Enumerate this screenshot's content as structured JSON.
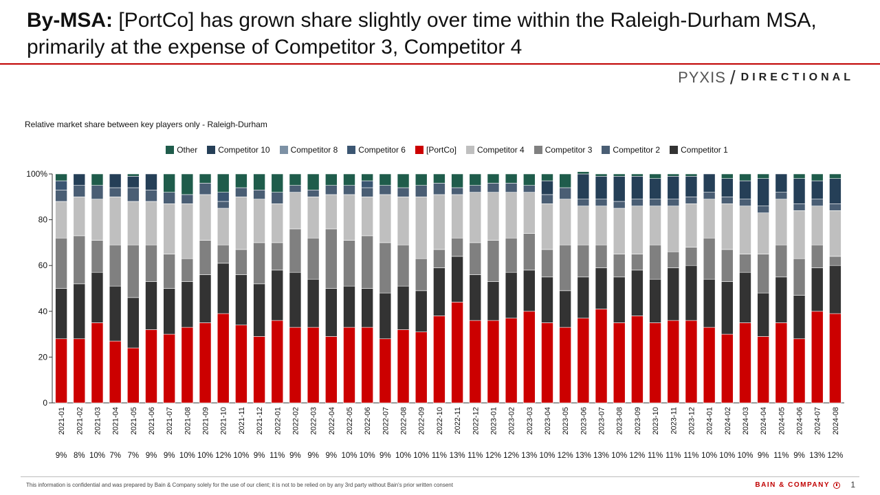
{
  "header": {
    "title_bold": "By-MSA:",
    "title_rest": "[PortCo] has grown share slightly over time within the Raleigh-Durham MSA, primarily at the expense of Competitor 3, Competitor 4",
    "brand": "PYXIS",
    "brand_slash": "/",
    "tag": "DIRECTIONAL"
  },
  "subtitle": "Relative market share between key players only - Raleigh-Durham",
  "footer": {
    "disclaimer": "This information is confidential and was prepared by Bain & Company solely for the use of our client; it is not to be relied on by any 3rd party without Bain's prior written consent",
    "company": "BAIN & COMPANY",
    "page": "1"
  },
  "chart_data": {
    "type": "bar",
    "stacked": true,
    "ylim": [
      0,
      100
    ],
    "yticks": [
      0,
      20,
      40,
      60,
      80,
      100
    ],
    "ytick_labels": [
      "0",
      "20",
      "40",
      "60",
      "80",
      "100%"
    ],
    "categories": [
      "2021-01",
      "2021-02",
      "2021-03",
      "2021-04",
      "2021-05",
      "2021-06",
      "2021-07",
      "2021-08",
      "2021-09",
      "2021-10",
      "2021-11",
      "2021-12",
      "2022-01",
      "2022-02",
      "2022-03",
      "2022-04",
      "2022-05",
      "2022-06",
      "2022-07",
      "2022-08",
      "2022-09",
      "2022-10",
      "2022-11",
      "2022-12",
      "2023-01",
      "2023-02",
      "2023-03",
      "2023-04",
      "2023-05",
      "2023-06",
      "2023-07",
      "2023-08",
      "2023-09",
      "2023-10",
      "2023-11",
      "2023-12",
      "2024-01",
      "2024-02",
      "2024-03",
      "2024-04",
      "2024-05",
      "2024-06",
      "2024-07",
      "2024-08"
    ],
    "bottom_labels": [
      "9%",
      "8%",
      "10%",
      "7%",
      "7%",
      "9%",
      "9%",
      "10%",
      "10%",
      "12%",
      "10%",
      "9%",
      "11%",
      "9%",
      "9%",
      "9%",
      "10%",
      "10%",
      "9%",
      "10%",
      "10%",
      "11%",
      "13%",
      "11%",
      "12%",
      "12%",
      "13%",
      "10%",
      "12%",
      "13%",
      "13%",
      "10%",
      "12%",
      "11%",
      "11%",
      "11%",
      "10%",
      "10%",
      "10%",
      "9%",
      "11%",
      "9%",
      "13%",
      "12%"
    ],
    "series": [
      {
        "name": "[PortCo]",
        "color": "#cc0000",
        "values": [
          28,
          28,
          35,
          27,
          24,
          32,
          30,
          33,
          35,
          39,
          34,
          29,
          36,
          33,
          33,
          29,
          33,
          33,
          28,
          32,
          31,
          38,
          44,
          36,
          36,
          37,
          40,
          35,
          33,
          37,
          41,
          35,
          38,
          35,
          36,
          36,
          33,
          30,
          35,
          29,
          35,
          28,
          40,
          39
        ]
      },
      {
        "name": "Competitor 1",
        "color": "#333333",
        "values": [
          22,
          24,
          22,
          24,
          22,
          21,
          20,
          20,
          21,
          22,
          22,
          23,
          22,
          24,
          21,
          21,
          18,
          17,
          20,
          19,
          18,
          21,
          20,
          20,
          17,
          20,
          18,
          20,
          16,
          18,
          18,
          20,
          20,
          19,
          23,
          24,
          21,
          23,
          22,
          19,
          20,
          19,
          19,
          21
        ]
      },
      {
        "name": "Competitor 3",
        "color": "#808080",
        "values": [
          22,
          21,
          14,
          18,
          23,
          16,
          15,
          10,
          15,
          8,
          11,
          18,
          12,
          19,
          18,
          26,
          20,
          23,
          22,
          18,
          14,
          8,
          8,
          14,
          18,
          15,
          16,
          12,
          20,
          14,
          10,
          10,
          7,
          15,
          7,
          8,
          18,
          14,
          8,
          17,
          14,
          16,
          10,
          4
        ]
      },
      {
        "name": "Competitor 4",
        "color": "#bfbfbf",
        "values": [
          16,
          17,
          18,
          21,
          19,
          19,
          22,
          24,
          20,
          16,
          23,
          19,
          17,
          16,
          18,
          15,
          20,
          17,
          21,
          21,
          27,
          24,
          19,
          22,
          21,
          20,
          18,
          20,
          20,
          17,
          17,
          20,
          21,
          17,
          20,
          19,
          17,
          20,
          21,
          18,
          20,
          21,
          17,
          20
        ]
      },
      {
        "name": "Competitor 2",
        "color": "#4a5e74",
        "values": [
          5,
          5,
          6,
          4,
          6,
          5,
          5,
          4,
          5,
          3,
          4,
          4,
          5,
          3,
          3,
          4,
          4,
          4,
          4,
          4,
          5,
          5,
          3,
          3,
          4,
          4,
          3,
          4,
          5,
          3,
          3,
          3,
          3,
          3,
          3,
          3,
          3,
          3,
          3,
          3,
          3,
          3,
          3,
          3
        ]
      },
      {
        "name": "Competitor 6",
        "color": "#3b5672",
        "values": [
          4,
          0,
          0,
          0,
          0,
          0,
          0,
          0,
          0,
          4,
          0,
          0,
          0,
          0,
          0,
          0,
          0,
          3,
          0,
          0,
          0,
          0,
          0,
          0,
          0,
          0,
          0,
          0,
          0,
          0,
          0,
          0,
          0,
          0,
          0,
          0,
          0,
          0,
          0,
          0,
          0,
          0,
          0,
          0
        ]
      },
      {
        "name": "Competitor 10",
        "color": "#253f57",
        "values": [
          0,
          5,
          0,
          6,
          5,
          7,
          0,
          0,
          0,
          0,
          0,
          0,
          0,
          0,
          0,
          0,
          0,
          0,
          0,
          0,
          0,
          0,
          0,
          0,
          0,
          0,
          0,
          6,
          0,
          11,
          10,
          11,
          10,
          9,
          10,
          9,
          8,
          8,
          8,
          12,
          8,
          11,
          8,
          11
        ]
      },
      {
        "name": "Competitor 8",
        "color": "#7d91a5",
        "values": [
          0,
          0,
          0,
          0,
          0,
          0,
          0,
          0,
          0,
          0,
          0,
          0,
          0,
          0,
          0,
          0,
          0,
          0,
          0,
          0,
          0,
          0,
          0,
          0,
          0,
          0,
          0,
          0,
          0,
          0,
          0,
          0,
          0,
          0,
          0,
          0,
          0,
          0,
          0,
          0,
          0,
          0,
          0,
          0
        ]
      },
      {
        "name": "Other",
        "color": "#1f5c4b",
        "values": [
          3,
          0,
          5,
          0,
          1,
          0,
          8,
          9,
          4,
          8,
          6,
          7,
          8,
          5,
          7,
          5,
          5,
          3,
          5,
          6,
          5,
          4,
          6,
          5,
          4,
          4,
          5,
          3,
          6,
          1,
          1,
          1,
          1,
          2,
          1,
          1,
          0,
          2,
          3,
          2,
          0,
          2,
          3,
          2
        ]
      }
    ],
    "legend_order": [
      "Other",
      "Competitor 10",
      "Competitor 8",
      "Competitor 6",
      "[PortCo]",
      "Competitor 4",
      "Competitor 3",
      "Competitor 2",
      "Competitor 1"
    ]
  }
}
